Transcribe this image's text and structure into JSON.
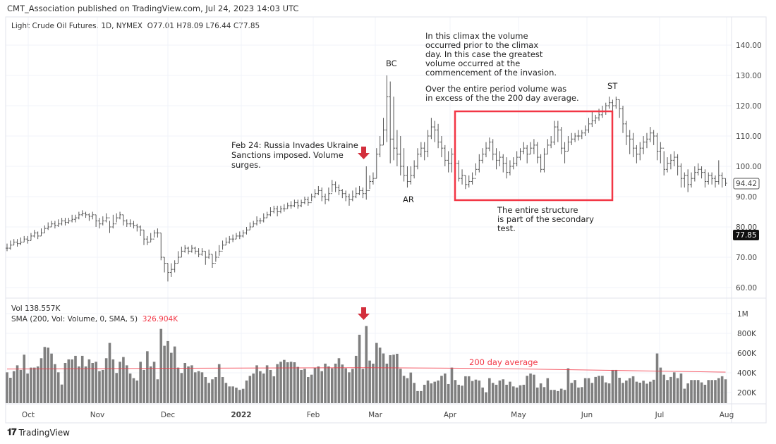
{
  "header": {
    "published": "CMT_Association published on TradingView.com, Jul 24, 2023 14:03 UTC",
    "symbol": "Light Crude Oil Futures, 1D, NYMEX",
    "ohlc": "O77.01  H78.09  L76.44  C77.85"
  },
  "volume_legend": {
    "vol": "Vol  138.557K",
    "sma": "SMA (200, Vol: Volume, 0, SMA, 5)",
    "sma_value": "326.904K"
  },
  "annotations": {
    "feb24": [
      "Feb 24: Russia Invades Ukraine",
      "Sanctions imposed. Volume",
      "surges."
    ],
    "climax": [
      "In this climax the volume",
      "occurred prior to the climax",
      "day.  In this case the greatest",
      "volume occurred at the",
      "commencement of the invasion.",
      "",
      "Over the entire period volume was",
      "in excess of the the 200 day average."
    ],
    "structure": [
      "The entire structure",
      "is part of the secondary",
      "test."
    ],
    "bc": "BC",
    "ar": "AR",
    "st": "ST",
    "sma_label": "200 day average"
  },
  "footer": {
    "brand": "TradingView"
  },
  "colors": {
    "bars": "#555555",
    "volume": "#7f7f7f",
    "sma": "#f23645",
    "annotation_box": "#f23645",
    "arrow": "#d32f3c"
  },
  "chart_data": [
    {
      "type": "ohlc",
      "title": "Light Crude Oil Futures, 1D, NYMEX",
      "ylim": [
        58,
        145
      ],
      "y_ticks": [
        "60.00",
        "70.00",
        "80.00",
        "90.00",
        "100.00",
        "110.00",
        "120.00",
        "130.00",
        "140.00"
      ],
      "x_ticks": [
        "Oct",
        "Nov",
        "Dec",
        "2022",
        "Feb",
        "Mar",
        "Apr",
        "May",
        "Jun",
        "Jul",
        "Aug"
      ],
      "last_price_label": "94.42",
      "current_price_label": "77.85",
      "close": [
        73,
        74,
        75,
        74.5,
        75,
        76,
        75.5,
        77,
        78,
        77,
        78,
        79.5,
        80,
        81,
        80.5,
        81,
        82,
        81.5,
        82,
        82.5,
        83,
        84,
        84.5,
        84,
        83.5,
        84,
        82,
        81,
        82,
        83,
        80,
        81,
        83,
        84,
        82,
        81,
        81,
        80.5,
        80,
        79,
        76,
        75,
        76,
        78,
        78,
        70,
        68,
        65,
        66,
        68,
        70,
        72,
        73,
        72,
        73,
        72,
        71,
        72,
        70,
        71,
        68,
        70,
        72,
        74,
        75,
        76,
        76,
        77,
        77,
        78,
        79,
        80,
        81,
        82,
        82,
        83,
        84,
        85,
        86,
        85,
        86,
        86,
        87,
        87,
        88,
        87,
        88,
        89,
        88,
        90,
        91,
        92,
        90,
        89,
        91,
        94,
        93,
        92,
        91,
        90,
        89,
        90,
        91,
        92,
        91,
        92,
        95,
        96,
        104,
        107,
        112,
        123,
        109,
        106,
        104,
        100,
        97,
        95,
        97,
        100,
        104,
        106,
        105,
        110,
        113,
        112,
        108,
        106,
        102,
        101,
        104,
        101,
        96,
        97,
        94,
        95,
        96,
        99,
        102,
        104,
        106,
        108,
        104,
        102,
        103,
        101,
        98,
        100,
        101,
        103,
        105,
        106,
        104,
        106,
        107,
        103,
        99,
        104,
        107,
        108,
        113,
        112,
        106,
        105,
        108,
        109,
        110,
        110,
        111,
        112,
        114,
        115,
        116,
        117,
        118,
        120,
        121,
        120,
        122,
        119,
        114,
        110,
        109,
        106,
        104,
        106,
        108,
        109,
        111,
        110,
        105,
        106,
        99,
        101,
        102,
        103,
        100,
        96,
        97,
        94,
        96,
        98,
        99,
        98,
        95,
        97,
        96,
        95,
        97,
        96,
        94.42
      ],
      "high": [
        74.5,
        75.5,
        76,
        76,
        76.5,
        77,
        77,
        78,
        79,
        78.5,
        79.5,
        80.5,
        81.5,
        82,
        82,
        82.5,
        83,
        83,
        83,
        84,
        84,
        85,
        85.5,
        85,
        84.5,
        85,
        84,
        83,
        83.5,
        84.5,
        82,
        84,
        84.5,
        85,
        84,
        82.5,
        82.5,
        82,
        81,
        80.5,
        79,
        77,
        78,
        79,
        79.5,
        78,
        70,
        68,
        68,
        69,
        72,
        73.5,
        74,
        73.5,
        74,
        73.5,
        73,
        73,
        72,
        72.5,
        71,
        72,
        74,
        75.5,
        76.5,
        77,
        77.5,
        78,
        78.5,
        79,
        80,
        81.5,
        82,
        83.5,
        83,
        84.5,
        85,
        86.5,
        87,
        87,
        87,
        87.5,
        88,
        88.5,
        89,
        89,
        89,
        90,
        90,
        91,
        92.5,
        93.5,
        93,
        91,
        93,
        95.5,
        95,
        94,
        92.5,
        92,
        91,
        92,
        93,
        93.5,
        93,
        100,
        97,
        98,
        106,
        110,
        116,
        130,
        128,
        123,
        112,
        110,
        106,
        100,
        100,
        102,
        106,
        108,
        108,
        112,
        116,
        115,
        114,
        110,
        107,
        105,
        106,
        105,
        102,
        99,
        97,
        97,
        98,
        101,
        104,
        106,
        108,
        109.5,
        109,
        106,
        105,
        104,
        103,
        102,
        103,
        105,
        106,
        108,
        107,
        108,
        109,
        108,
        104,
        106,
        109,
        110,
        115,
        115,
        113,
        108,
        110,
        111,
        111,
        112,
        112,
        113.5,
        116,
        118,
        117,
        119,
        120,
        121,
        123,
        122,
        123,
        122,
        120,
        115,
        112,
        111,
        107,
        108,
        110,
        111,
        113,
        112,
        111,
        108,
        105,
        103,
        104,
        105,
        104,
        101,
        98,
        99,
        98,
        100,
        101,
        100,
        99,
        98,
        98,
        97,
        102,
        98,
        96
      ],
      "low": [
        72,
        72.5,
        74,
        73.5,
        74,
        75,
        74.5,
        75.5,
        76.5,
        76,
        77,
        78,
        79,
        80,
        79.5,
        80,
        80.5,
        80.5,
        81,
        81.5,
        81.5,
        82.5,
        83.5,
        83,
        82,
        82.5,
        80,
        79.5,
        80.5,
        81.5,
        78,
        79.5,
        81.5,
        82.5,
        80.5,
        80,
        80,
        79.5,
        78.5,
        77,
        74,
        74,
        75,
        76.5,
        76.5,
        69,
        65,
        62,
        63.5,
        65,
        68,
        70,
        71.5,
        71,
        71.5,
        71,
        70,
        70.5,
        67.5,
        69.5,
        66.5,
        68.5,
        70.5,
        72.5,
        74,
        74.5,
        75,
        76,
        76,
        76.5,
        77.5,
        79,
        80,
        80.5,
        81,
        81.5,
        83,
        83.5,
        84.5,
        83.5,
        84.5,
        85,
        86,
        86,
        86.5,
        86,
        86.5,
        87.5,
        87,
        88.5,
        89.5,
        90.5,
        88.5,
        87.5,
        88.5,
        91.5,
        91.5,
        90.5,
        89.5,
        88.5,
        87,
        88.5,
        89.5,
        90.5,
        89.5,
        89,
        92.5,
        94,
        96,
        103,
        107,
        108,
        101,
        102,
        100,
        97,
        95,
        93,
        94,
        96,
        99,
        103,
        102,
        103,
        109,
        108,
        106,
        103,
        100,
        98,
        98,
        99,
        95,
        94,
        92.5,
        93,
        94,
        97,
        98,
        101,
        103,
        105,
        102,
        99,
        100,
        98,
        96,
        97,
        99,
        100,
        102,
        104,
        101,
        104,
        104,
        101,
        98,
        98,
        104,
        106,
        107,
        108,
        104,
        101,
        105,
        107,
        108,
        108.5,
        109,
        110,
        111,
        113,
        114,
        115,
        116,
        117,
        119,
        117,
        119,
        116,
        111,
        107,
        104,
        103,
        101,
        102,
        104,
        106,
        108,
        107,
        102,
        101,
        97,
        98,
        99,
        100,
        97,
        93,
        93,
        91.5,
        93,
        95,
        97,
        96,
        93,
        94,
        94,
        93,
        94,
        93,
        93.5
      ]
    },
    {
      "type": "bar",
      "title": "Vol",
      "unit": "K",
      "ylim": [
        0,
        1050
      ],
      "y_ticks": [
        "200K",
        "400K",
        "600K",
        "800K",
        "1M"
      ],
      "values": [
        405,
        350,
        417,
        476,
        429,
        584,
        393,
        453,
        453,
        465,
        548,
        662,
        655,
        595,
        488,
        405,
        281,
        500,
        536,
        536,
        572,
        465,
        572,
        465,
        536,
        500,
        512,
        417,
        429,
        548,
        703,
        536,
        398,
        512,
        560,
        476,
        393,
        346,
        322,
        512,
        429,
        619,
        465,
        512,
        334,
        845,
        674,
        722,
        603,
        667,
        453,
        398,
        500,
        465,
        476,
        405,
        417,
        405,
        357,
        298,
        334,
        357,
        488,
        357,
        298,
        262,
        262,
        250,
        227,
        238,
        322,
        369,
        393,
        476,
        417,
        393,
        476,
        429,
        365,
        488,
        512,
        531,
        507,
        512,
        507,
        460,
        429,
        441,
        357,
        381,
        453,
        465,
        417,
        493,
        465,
        446,
        493,
        548,
        484,
        446,
        405,
        441,
        572,
        786,
        441,
        874,
        524,
        493,
        703,
        655,
        596,
        493,
        579,
        584,
        593,
        441,
        370,
        346,
        403,
        298,
        215,
        215,
        279,
        322,
        293,
        310,
        322,
        370,
        393,
        286,
        453,
        327,
        279,
        270,
        365,
        365,
        317,
        331,
        322,
        251,
        203,
        346,
        298,
        279,
        322,
        334,
        279,
        310,
        262,
        251,
        274,
        279,
        370,
        393,
        381,
        251,
        293,
        255,
        346,
        227,
        227,
        215,
        239,
        227,
        446,
        298,
        327,
        251,
        255,
        346,
        346,
        298,
        358,
        370,
        370,
        303,
        293,
        429,
        429,
        350,
        298,
        322,
        346,
        365,
        310,
        300,
        320,
        290,
        310,
        330,
        596,
        453,
        381,
        327,
        358,
        405,
        346,
        393,
        239,
        293,
        327,
        327,
        327,
        303,
        279,
        327,
        327,
        327,
        346,
        365,
        334
      ],
      "sma200": {
        "name": "SMA (200, Vol: Volume, 0, SMA, 5)",
        "points": [
          [
            0,
            438
          ],
          [
            50,
            446
          ],
          [
            105,
            452
          ],
          [
            140,
            445
          ],
          [
            210,
            407
          ]
        ]
      }
    }
  ]
}
